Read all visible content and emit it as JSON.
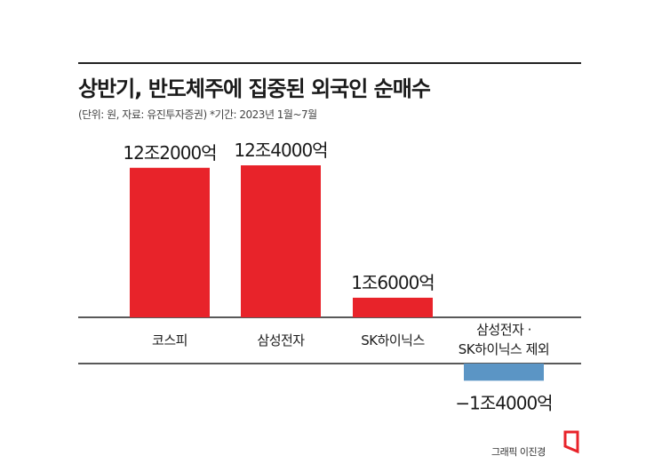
{
  "header": {
    "title": "상반기, 반도체주에 집중된 외국인 순매수",
    "subtitle": "(단위: 원, 자료: 유진투자증권) *기간: 2023년 1월~7월"
  },
  "footer": {
    "credit": "그래픽 이진경"
  },
  "colors": {
    "positive": "#E8232A",
    "negative": "#5B95C5",
    "axis": "#222222"
  },
  "chart_data": {
    "type": "bar",
    "title": "상반기, 반도체주에 집중된 외국인 순매수",
    "subtitle": "(단위: 원, 자료: 유진투자증권) *기간: 2023년 1월~7월",
    "categories": [
      "코스피",
      "삼성전자",
      "SK하이닉스",
      "삼성전자 · SK하이닉스 제외"
    ],
    "category_lines": [
      [
        "코스피"
      ],
      [
        "삼성전자"
      ],
      [
        "SK하이닉스"
      ],
      [
        "삼성전자 ·",
        "SK하이닉스 제외"
      ]
    ],
    "values": [
      12.2,
      12.4,
      1.6,
      -1.4
    ],
    "value_unit": "조 원",
    "data_labels": [
      "12조2000억",
      "12조4000억",
      "1조6000억",
      "−1조4000억"
    ],
    "ylim": [
      -1.4,
      12.4
    ],
    "grid": false,
    "legend": "none"
  }
}
